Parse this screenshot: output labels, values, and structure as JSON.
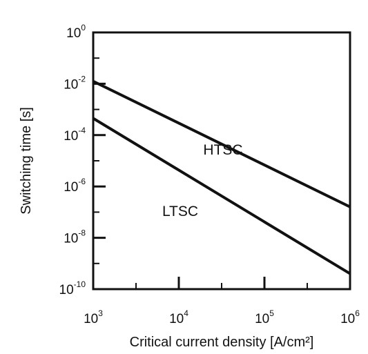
{
  "chart_data": {
    "type": "line",
    "title": "",
    "xlabel": "Critical current density [A/cm²]",
    "ylabel": "Switching time [s]",
    "x_scale": "log",
    "y_scale": "log",
    "xlim": [
      1000,
      1000000
    ],
    "ylim": [
      1e-10,
      1
    ],
    "grid": false,
    "legend": "none",
    "x_ticks": [
      {
        "base": "10",
        "exp": "3"
      },
      {
        "base": "10",
        "exp": "4"
      },
      {
        "base": "10",
        "exp": "5"
      },
      {
        "base": "10",
        "exp": "6"
      }
    ],
    "y_ticks": [
      {
        "base": "10",
        "exp": "0"
      },
      {
        "base": "10",
        "exp": "-2"
      },
      {
        "base": "10",
        "exp": "-4"
      },
      {
        "base": "10",
        "exp": "-6"
      },
      {
        "base": "10",
        "exp": "-8"
      },
      {
        "base": "10",
        "exp": "-10"
      }
    ],
    "series": [
      {
        "name": "HTSC",
        "x": [
          1000,
          1000000
        ],
        "y": [
          0.0125,
          1.6e-07
        ],
        "color": "#111111"
      },
      {
        "name": "LTSC",
        "x": [
          1000,
          1000000
        ],
        "y": [
          0.00045,
          4e-10
        ],
        "color": "#111111"
      }
    ]
  }
}
